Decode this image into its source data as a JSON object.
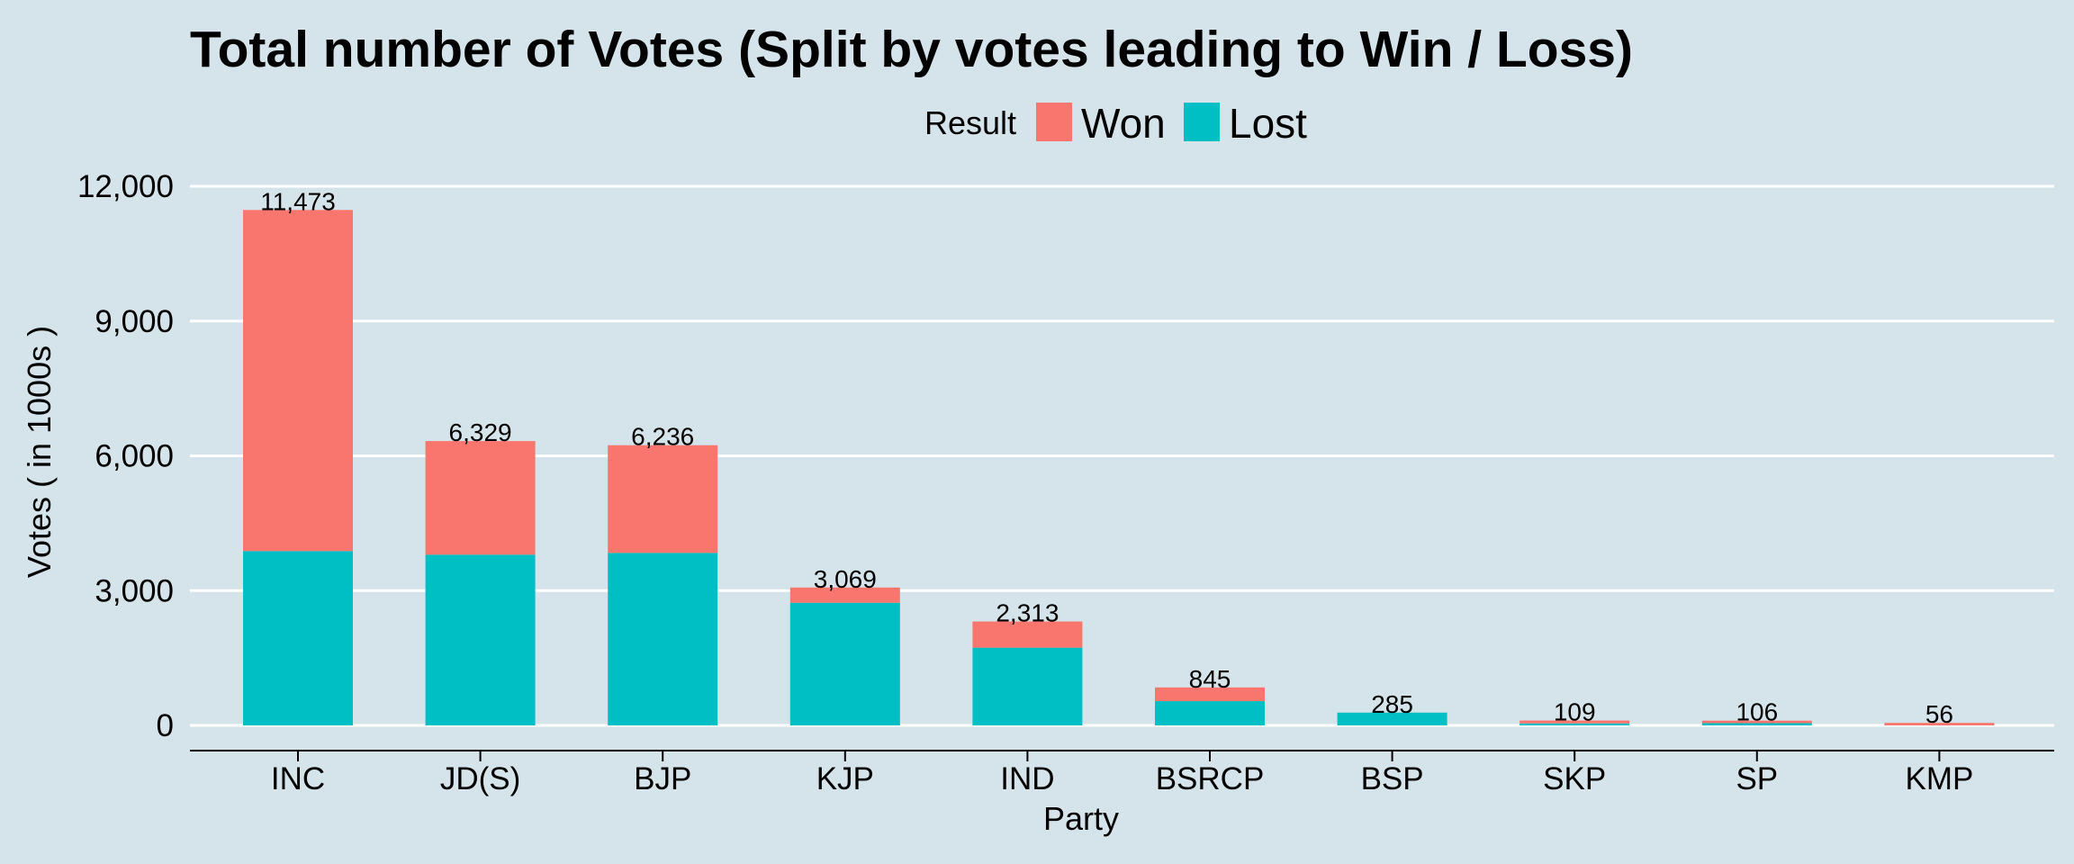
{
  "chart_data": {
    "type": "bar",
    "stacked": true,
    "title": "Total number of Votes (Split by votes leading to Win / Loss)",
    "xlabel": "Party",
    "ylabel": "Votes ( in 1000s )",
    "ylim": [
      0,
      12000
    ],
    "yticks": [
      0,
      3000,
      6000,
      9000,
      12000
    ],
    "ytick_labels": [
      "0",
      "3,000",
      "6,000",
      "9,000",
      "12,000"
    ],
    "grid": true,
    "legend": {
      "title": "Result",
      "position": "top"
    },
    "categories": [
      "INC",
      "JD(S)",
      "BJP",
      "KJP",
      "IND",
      "BSRCP",
      "BSP",
      "SKP",
      "SP",
      "KMP"
    ],
    "series": [
      {
        "name": "Lost",
        "color": "#00bfc4",
        "values": [
          3880,
          3800,
          3840,
          2730,
          1730,
          540,
          285,
          45,
          50,
          0
        ]
      },
      {
        "name": "Won",
        "color": "#f8766d",
        "values": [
          7593,
          2529,
          2396,
          339,
          583,
          305,
          0,
          64,
          56,
          56
        ]
      }
    ],
    "totals": [
      11473,
      6329,
      6236,
      3069,
      2313,
      845,
      285,
      109,
      106,
      56
    ],
    "total_labels": [
      "11,473",
      "6,329",
      "6,236",
      "3,069",
      "2,313",
      "845",
      "285",
      "109",
      "106",
      "56"
    ]
  }
}
